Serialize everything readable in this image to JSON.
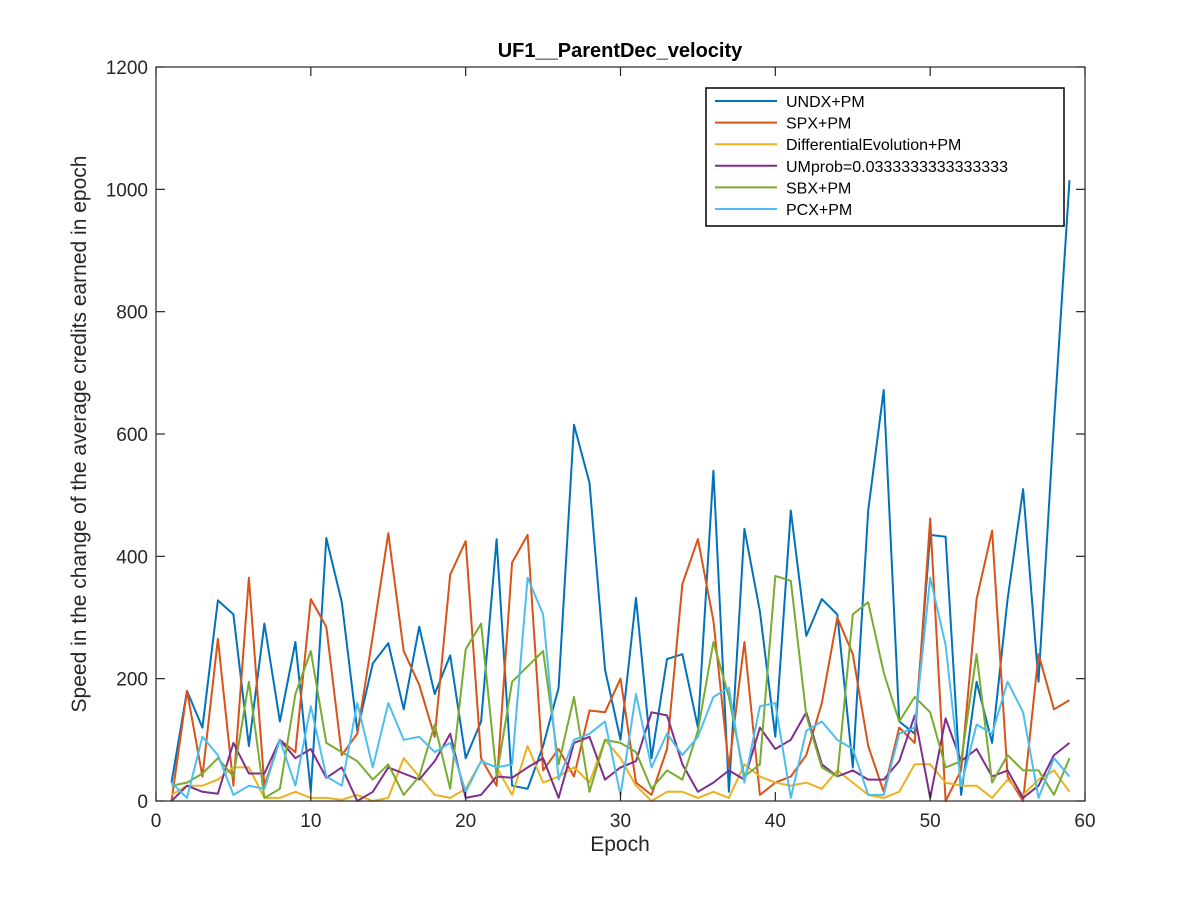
{
  "chart_data": {
    "type": "line",
    "title": "UF1__ParentDec_velocity",
    "xlabel": "Epoch",
    "ylabel": "Speed in the change of the average credits earned in epoch",
    "xlim": [
      0,
      60
    ],
    "ylim": [
      0,
      1200
    ],
    "xticks": [
      0,
      10,
      20,
      30,
      40,
      50,
      60
    ],
    "yticks": [
      0,
      200,
      400,
      600,
      800,
      1000,
      1200
    ],
    "grid": false,
    "legend_position": "top-right",
    "x": [
      1,
      2,
      3,
      4,
      5,
      6,
      7,
      8,
      9,
      10,
      11,
      12,
      13,
      14,
      15,
      16,
      17,
      18,
      19,
      20,
      21,
      22,
      23,
      24,
      25,
      26,
      27,
      28,
      29,
      30,
      31,
      32,
      33,
      34,
      35,
      36,
      37,
      38,
      39,
      40,
      41,
      42,
      43,
      44,
      45,
      46,
      47,
      48,
      49,
      50,
      51,
      52,
      53,
      54,
      55,
      56,
      57,
      58,
      59
    ],
    "series": [
      {
        "name": "UNDX+PM",
        "color": "#0072BD",
        "values": [
          30,
          180,
          120,
          328,
          305,
          90,
          290,
          130,
          260,
          15,
          430,
          325,
          115,
          225,
          258,
          150,
          285,
          175,
          238,
          70,
          130,
          428,
          25,
          20,
          90,
          185,
          615,
          520,
          215,
          100,
          332,
          70,
          232,
          240,
          120,
          540,
          15,
          445,
          310,
          105,
          475,
          270,
          330,
          305,
          55,
          475,
          672,
          130,
          110,
          435,
          432,
          10,
          195,
          95,
          330,
          510,
          195,
          620,
          1015
        ]
      },
      {
        "name": "SPX+PM",
        "color": "#D95319",
        "values": [
          0,
          180,
          40,
          265,
          25,
          365,
          25,
          100,
          80,
          330,
          285,
          75,
          110,
          270,
          438,
          245,
          190,
          105,
          370,
          425,
          70,
          25,
          390,
          435,
          50,
          85,
          40,
          148,
          145,
          200,
          30,
          10,
          85,
          355,
          428,
          295,
          55,
          260,
          10,
          30,
          40,
          75,
          160,
          300,
          240,
          90,
          15,
          120,
          95,
          462,
          0,
          50,
          330,
          442,
          40,
          0,
          240,
          150,
          165
        ]
      },
      {
        "name": "DifferentialEvolution+PM",
        "color": "#EDB120",
        "values": [
          10,
          25,
          25,
          35,
          55,
          55,
          5,
          5,
          15,
          5,
          5,
          2,
          10,
          0,
          5,
          70,
          40,
          10,
          5,
          20,
          65,
          55,
          10,
          90,
          30,
          40,
          55,
          30,
          100,
          70,
          25,
          0,
          15,
          15,
          5,
          15,
          5,
          60,
          40,
          30,
          25,
          30,
          20,
          50,
          30,
          10,
          5,
          15,
          60,
          60,
          30,
          25,
          25,
          5,
          35,
          10,
          35,
          50,
          15
        ]
      },
      {
        "name": "UMprob=0.0333333333333333",
        "color": "#7E2F8E",
        "values": [
          0,
          25,
          15,
          12,
          95,
          45,
          45,
          100,
          70,
          85,
          38,
          55,
          0,
          15,
          55,
          45,
          35,
          65,
          110,
          5,
          10,
          40,
          38,
          55,
          70,
          5,
          95,
          105,
          35,
          55,
          65,
          145,
          140,
          60,
          15,
          30,
          50,
          35,
          120,
          85,
          100,
          145,
          60,
          40,
          50,
          35,
          35,
          65,
          140,
          5,
          135,
          65,
          85,
          40,
          50,
          5,
          25,
          75,
          95
        ]
      },
      {
        "name": "SBX+PM",
        "color": "#77AC30",
        "values": [
          25,
          30,
          45,
          70,
          40,
          195,
          5,
          20,
          175,
          245,
          95,
          80,
          65,
          35,
          60,
          10,
          40,
          125,
          20,
          248,
          290,
          40,
          195,
          220,
          245,
          60,
          170,
          15,
          100,
          95,
          80,
          20,
          50,
          35,
          115,
          260,
          170,
          40,
          60,
          368,
          360,
          140,
          55,
          40,
          305,
          325,
          210,
          130,
          170,
          145,
          55,
          65,
          240,
          30,
          75,
          50,
          50,
          10,
          70
        ]
      },
      {
        "name": "PCX+PM",
        "color": "#4DBEEE",
        "values": [
          30,
          5,
          105,
          75,
          10,
          25,
          20,
          100,
          25,
          155,
          40,
          25,
          160,
          55,
          160,
          100,
          105,
          80,
          95,
          15,
          65,
          55,
          60,
          365,
          305,
          35,
          100,
          110,
          130,
          10,
          175,
          55,
          110,
          75,
          105,
          170,
          185,
          30,
          155,
          160,
          5,
          115,
          130,
          100,
          85,
          10,
          10,
          110,
          120,
          365,
          255,
          25,
          125,
          110,
          195,
          145,
          5,
          70,
          40
        ]
      }
    ]
  }
}
